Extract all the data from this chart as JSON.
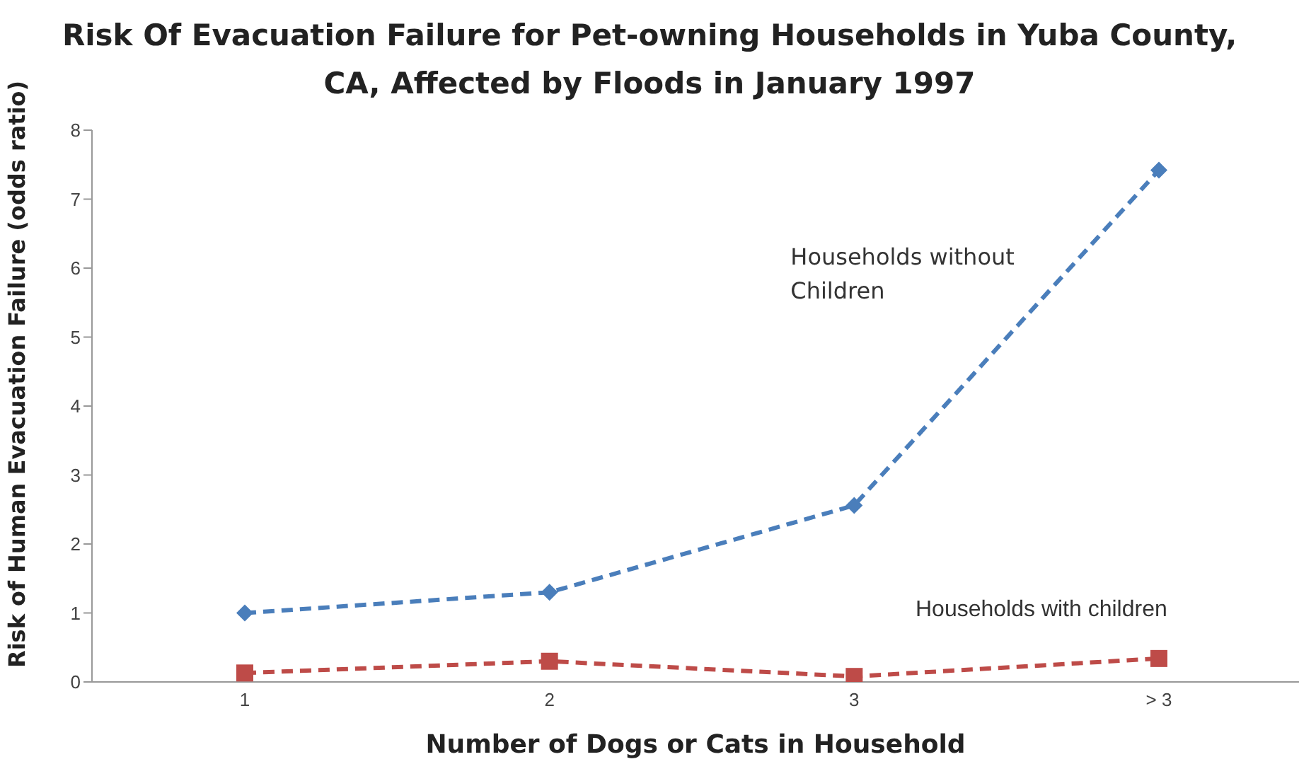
{
  "chart_data": {
    "type": "line",
    "title": "Risk Of Evacuation Failure for Pet-owning Households in Yuba County, CA, Affected by Floods in January 1997",
    "xlabel": "Number of Dogs or Cats in Household",
    "ylabel": "Risk of Human Evacuation Failure (odds ratio)",
    "categories": [
      "1",
      "2",
      "3",
      "> 3"
    ],
    "series": [
      {
        "name": "Households without Children",
        "color": "#4a7ebb",
        "values": [
          1.0,
          1.3,
          2.56,
          7.42
        ],
        "marker": "diamond"
      },
      {
        "name": "Households with children",
        "color": "#be4b48",
        "values": [
          0.13,
          0.3,
          0.08,
          0.34
        ],
        "marker": "square"
      }
    ],
    "ylim": [
      0,
      8
    ],
    "yticks": [
      0,
      1,
      2,
      3,
      4,
      5,
      6,
      7,
      8
    ],
    "grid": false,
    "legend": false,
    "line_style": "dashed"
  }
}
